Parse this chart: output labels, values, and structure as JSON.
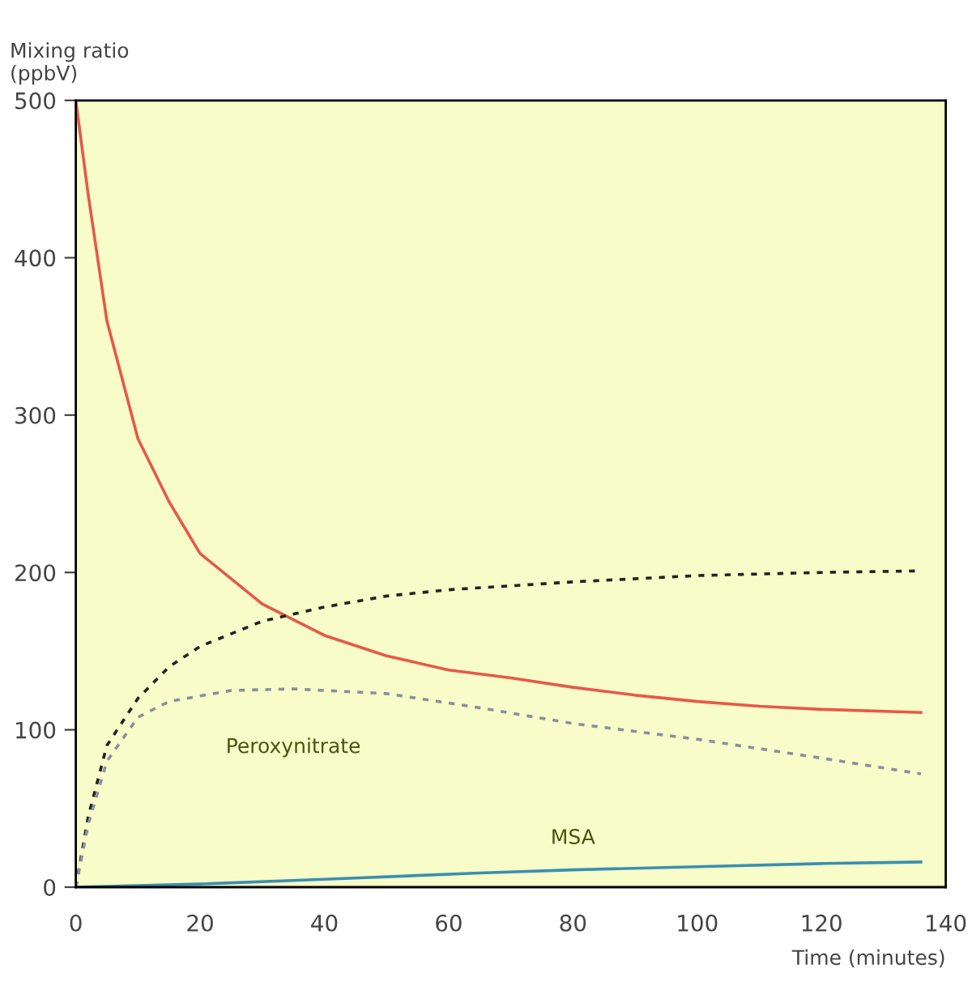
{
  "chart_data": {
    "type": "line",
    "ylabel": "Mixing ratio\n(ppbV)",
    "xlabel": "Time (minutes)",
    "xlim": [
      0,
      140
    ],
    "ylim": [
      0,
      500
    ],
    "xticks": [
      0,
      20,
      40,
      60,
      80,
      100,
      120,
      140
    ],
    "yticks": [
      0,
      100,
      200,
      300,
      400,
      500
    ],
    "grid": false,
    "legend": false,
    "marker": "none",
    "series": [
      {
        "color": "#e8584a",
        "line_style": "solid",
        "x": [
          0,
          2,
          5,
          10,
          15,
          20,
          30,
          40,
          50,
          60,
          70,
          80,
          90,
          100,
          110,
          120,
          136
        ],
        "values": [
          500,
          440,
          360,
          285,
          245,
          212,
          180,
          160,
          147,
          138,
          133,
          127,
          122,
          118,
          115,
          113,
          111
        ]
      },
      {
        "color": "#222222",
        "line_style": "dotted",
        "x": [
          0,
          2,
          5,
          10,
          15,
          20,
          30,
          40,
          50,
          60,
          80,
          100,
          120,
          136
        ],
        "values": [
          0,
          45,
          90,
          120,
          140,
          153,
          169,
          178,
          185,
          189,
          194,
          198,
          200,
          201
        ]
      },
      {
        "name": "Peroxynitrate",
        "color": "#8a8fa0",
        "line_style": "dotted",
        "x": [
          0,
          2,
          5,
          10,
          15,
          25,
          35,
          50,
          65,
          80,
          100,
          120,
          136
        ],
        "values": [
          0,
          40,
          80,
          108,
          118,
          125,
          126,
          123,
          114,
          104,
          94,
          82,
          72
        ]
      },
      {
        "name": "MSA",
        "color": "#3a8fb0",
        "line_style": "solid",
        "x": [
          0,
          20,
          40,
          65,
          80,
          100,
          120,
          136
        ],
        "values": [
          0,
          2,
          5,
          9,
          11,
          13,
          15,
          16
        ]
      }
    ]
  }
}
